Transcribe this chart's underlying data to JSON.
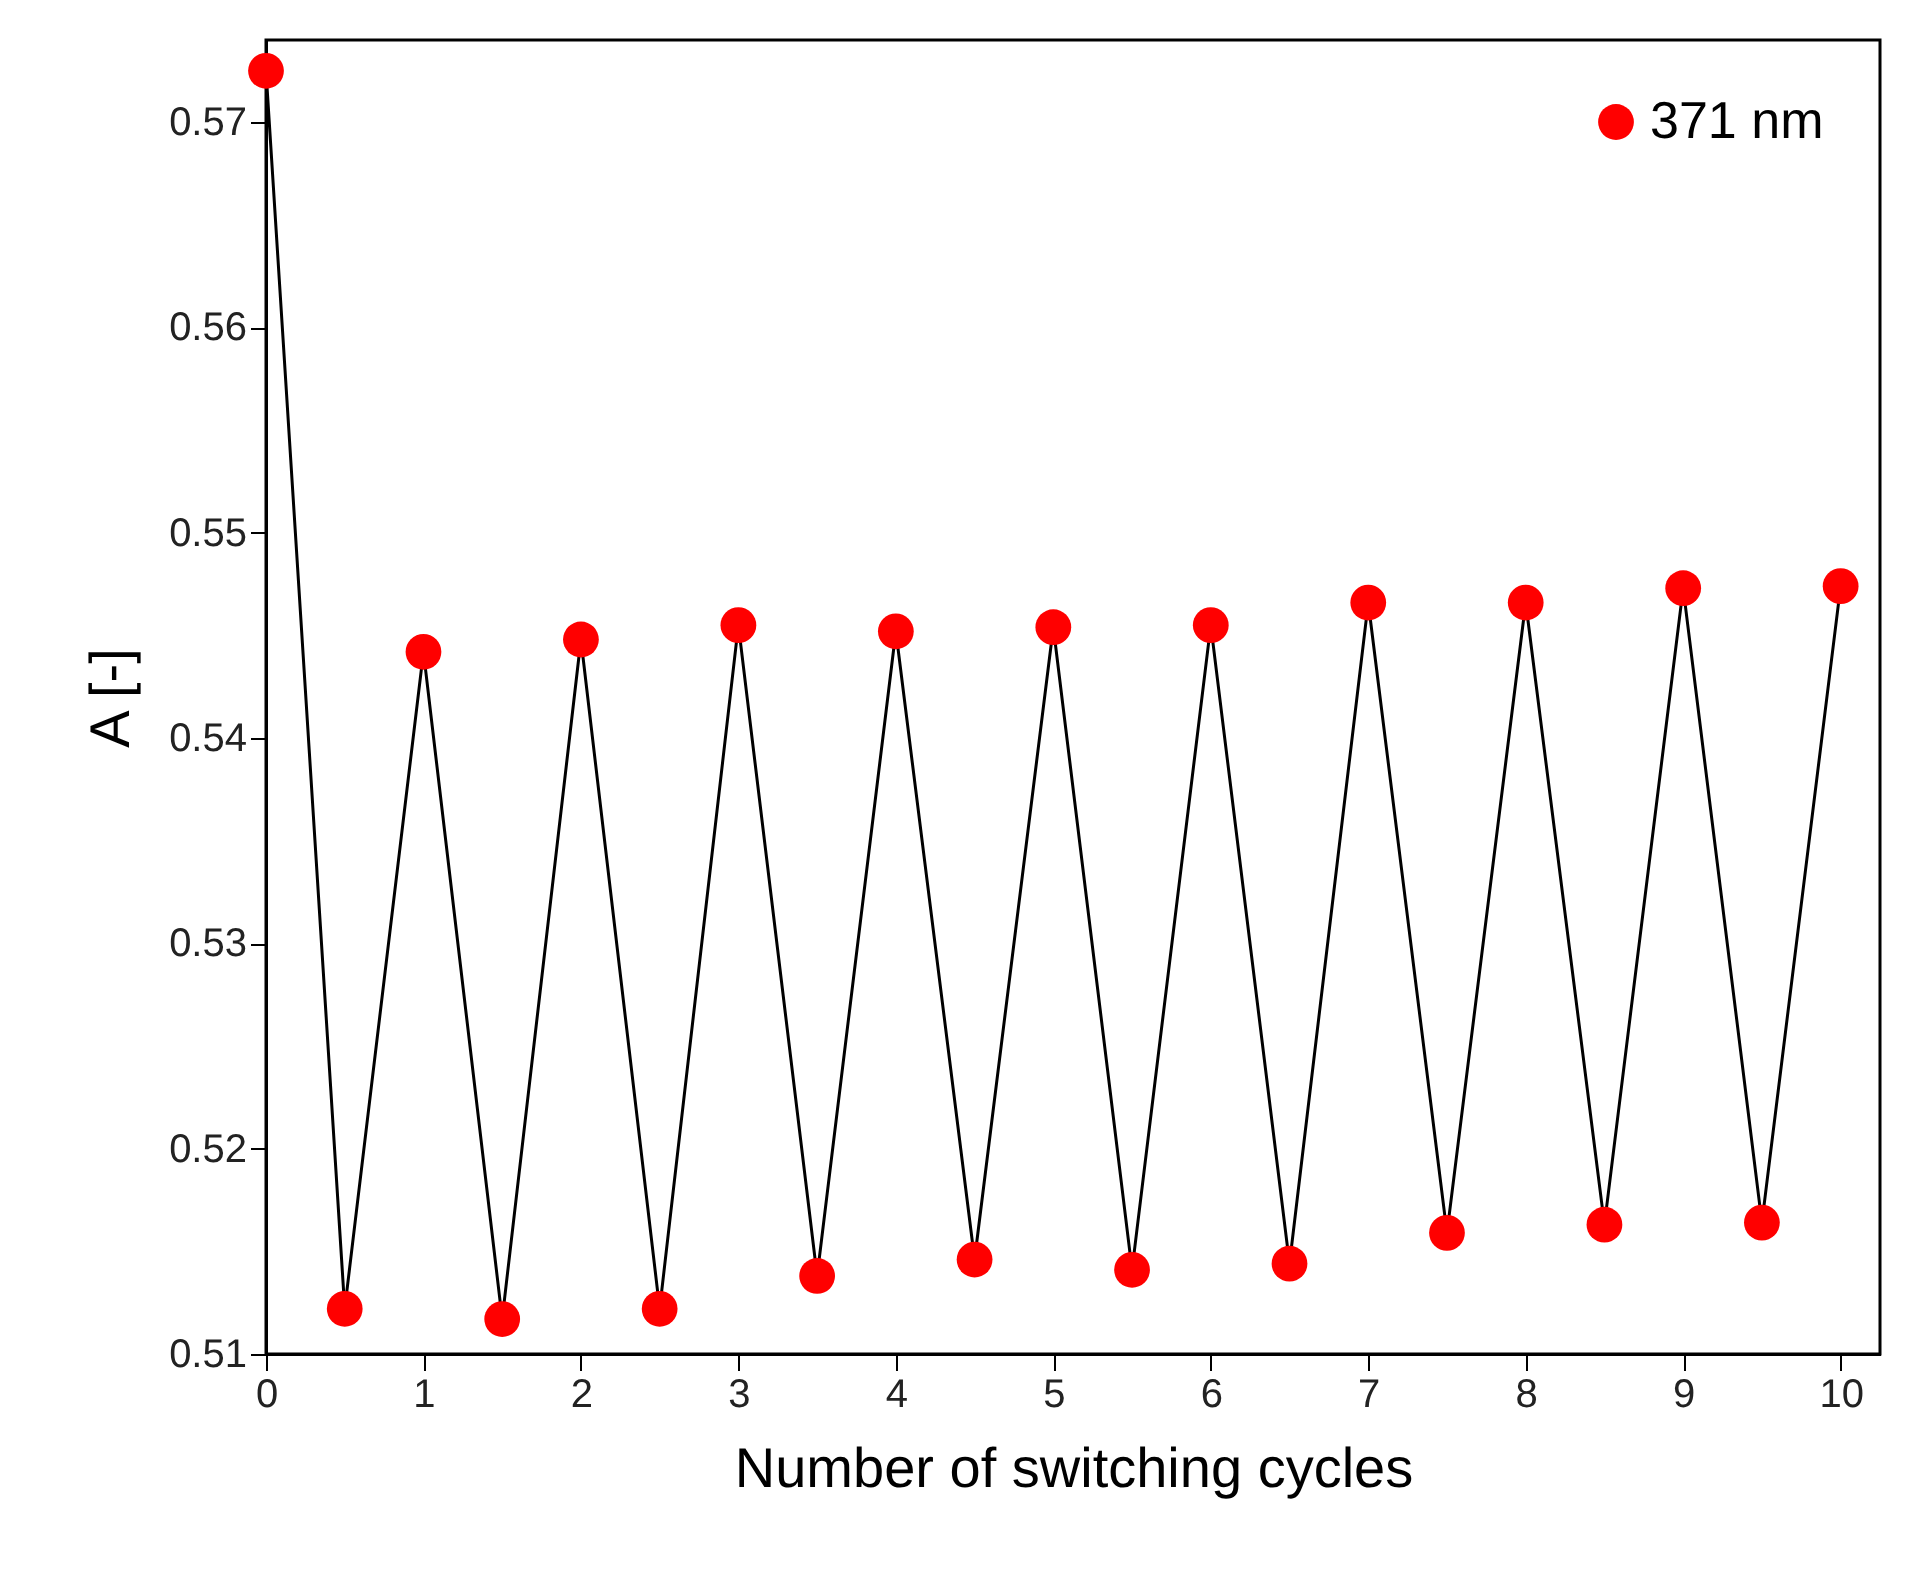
{
  "chart_data": {
    "type": "line",
    "xlabel": "Number of switching cycles",
    "ylabel": "A [-]",
    "x": [
      0,
      0.5,
      1,
      1.5,
      2,
      2.5,
      3,
      3.5,
      4,
      4.5,
      5,
      5.5,
      6,
      6.5,
      7,
      7.5,
      8,
      8.5,
      9,
      9.5,
      10
    ],
    "series": [
      {
        "name": "371 nm",
        "color": "#ff0000",
        "values": [
          0.5725,
          0.5122,
          0.5442,
          0.5117,
          0.5448,
          0.5122,
          0.5455,
          0.5138,
          0.5452,
          0.5146,
          0.5454,
          0.5141,
          0.5455,
          0.5144,
          0.5466,
          0.5159,
          0.5466,
          0.5163,
          0.5473,
          0.5164,
          0.5474
        ]
      }
    ],
    "xlim": [
      0,
      10.25
    ],
    "xticks": [
      0,
      1,
      2,
      3,
      4,
      5,
      6,
      7,
      8,
      9,
      10
    ],
    "ylim": [
      0.51,
      0.574
    ],
    "yticks": [
      0.51,
      0.52,
      0.53,
      0.54,
      0.55,
      0.56,
      0.57
    ],
    "grid": false,
    "legend": "top right",
    "marker": "circle",
    "line_style": "solid"
  }
}
